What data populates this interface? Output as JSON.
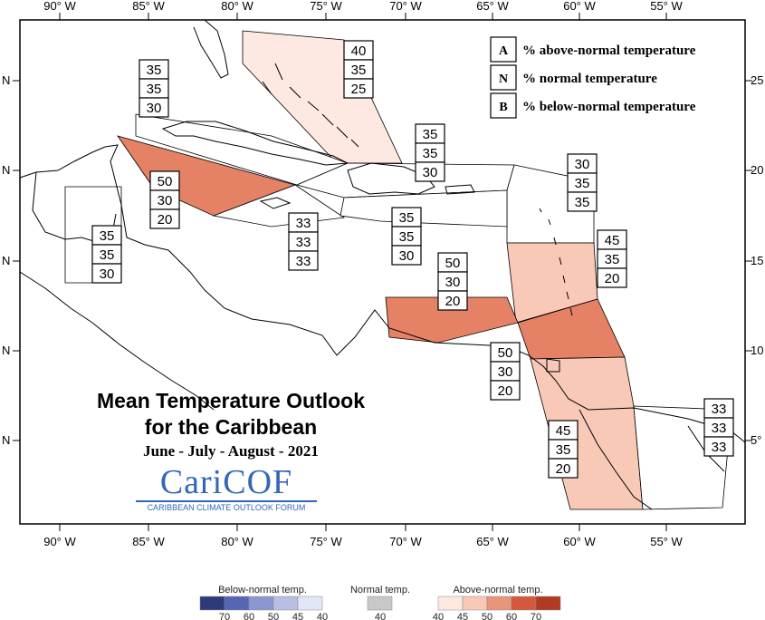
{
  "map": {
    "title_line1": "Mean Temperature Outlook",
    "title_line2": "for the Caribbean",
    "subtitle": "June - July - August - 2021",
    "logo_text": "CariCOF",
    "logo_subtitle": "CARIBBEAN CLIMATE OUTLOOK FORUM",
    "lon_ticks": [
      "90° W",
      "85° W",
      "80° W",
      "75° W",
      "70° W",
      "65° W",
      "60° W",
      "55° W"
    ],
    "lat_left_ticks": [
      "N",
      "N",
      "N",
      "N",
      "N"
    ],
    "lat_right_ticks": [
      "25",
      "20",
      "15",
      "10",
      "5°"
    ]
  },
  "key": {
    "items": [
      {
        "letter": "A",
        "text": "% above-normal temperature"
      },
      {
        "letter": "N",
        "text": "% normal temperature"
      },
      {
        "letter": "B",
        "text": "% below-normal temperature"
      }
    ]
  },
  "regions": [
    {
      "name": "bahamas",
      "values": [
        "40",
        "35",
        "25"
      ],
      "fill": "#fde9e2"
    },
    {
      "name": "cuba-west",
      "values": [
        "35",
        "35",
        "30"
      ],
      "fill": "#ffffff"
    },
    {
      "name": "cayman-jamaica-sea",
      "values": [
        "50",
        "30",
        "20"
      ],
      "fill": "#e58266"
    },
    {
      "name": "hispaniola-north",
      "values": [
        "35",
        "35",
        "30"
      ],
      "fill": "#ffffff"
    },
    {
      "name": "northern-leewards",
      "values": [
        "30",
        "35",
        "35"
      ],
      "fill": "#ffffff"
    },
    {
      "name": "belize",
      "values": [
        "35",
        "35",
        "30"
      ],
      "fill": "#ffffff"
    },
    {
      "name": "jamaica",
      "values": [
        "33",
        "33",
        "33"
      ],
      "fill": "#ffffff"
    },
    {
      "name": "hispaniola-south",
      "values": [
        "35",
        "35",
        "30"
      ],
      "fill": "#ffffff"
    },
    {
      "name": "windwards",
      "values": [
        "45",
        "35",
        "20"
      ],
      "fill": "#f9c9b7"
    },
    {
      "name": "abc-islands",
      "values": [
        "50",
        "30",
        "20"
      ],
      "fill": "#e58266"
    },
    {
      "name": "trinidad-barbados",
      "values": [
        "50",
        "30",
        "20"
      ],
      "fill": "#e58266"
    },
    {
      "name": "guyana",
      "values": [
        "45",
        "35",
        "20"
      ],
      "fill": "#f9c9b7"
    },
    {
      "name": "suriname-guiana",
      "values": [
        "33",
        "33",
        "33"
      ],
      "fill": "#ffffff"
    }
  ],
  "colorbar": {
    "below_label": "Below-normal temp.",
    "normal_label": "Normal temp.",
    "above_label": "Above-normal temp.",
    "below_ticks": [
      "70",
      "60",
      "50",
      "45",
      "40"
    ],
    "normal_ticks": [
      "40"
    ],
    "above_ticks": [
      "40",
      "45",
      "50",
      "60",
      "70"
    ],
    "below_colors": [
      "#2e3a7a",
      "#5666b3",
      "#8c97cf",
      "#b8bfe3",
      "#e2e6f5"
    ],
    "normal_color": "#c8c8c8",
    "above_colors": [
      "#fde9e2",
      "#f9c9b7",
      "#e8957a",
      "#d4583c",
      "#b13a22"
    ]
  }
}
